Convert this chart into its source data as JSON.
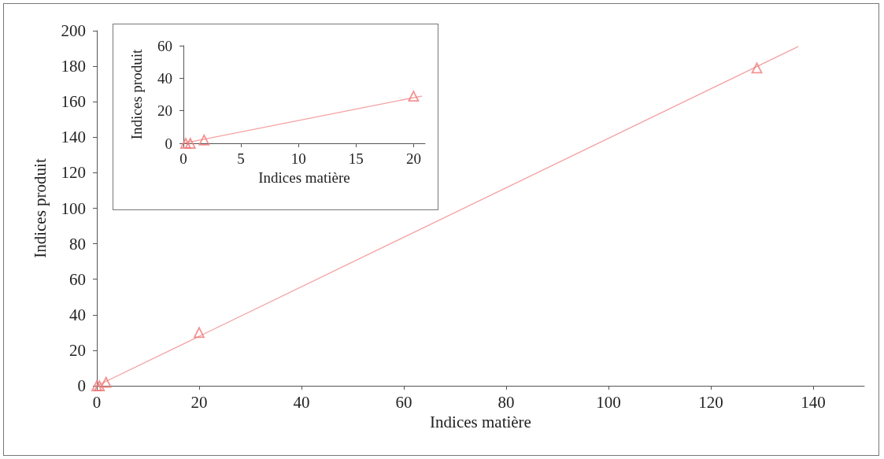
{
  "chart_data": [
    {
      "type": "scatter",
      "xlabel": "Indices matière",
      "ylabel": "Indices produit",
      "xlim": [
        0,
        150
      ],
      "xticks": [
        0,
        20,
        40,
        60,
        80,
        100,
        120,
        140
      ],
      "ylim": [
        0,
        200
      ],
      "yticks": [
        0,
        20,
        40,
        60,
        80,
        100,
        120,
        140,
        160,
        180,
        200
      ],
      "marker": "triangle",
      "series": [
        {
          "color": "#f07878",
          "x": [
            0,
            0.5,
            1.8,
            20,
            129
          ],
          "values": [
            0,
            0,
            2,
            30,
            179
          ]
        },
        {
          "type": "line",
          "color": "#f4a0a0",
          "marker": "none",
          "x": [
            0,
            137
          ],
          "values": [
            0,
            191
          ]
        }
      ]
    },
    {
      "type": "scatter",
      "xlabel": "Indices matière",
      "ylabel": "Indices produit",
      "xlim": [
        0,
        21
      ],
      "xticks": [
        0,
        5,
        10,
        15,
        20
      ],
      "ylim": [
        0,
        60
      ],
      "yticks": [
        0,
        20,
        40,
        60
      ],
      "marker": "triangle",
      "series": [
        {
          "color": "#f07878",
          "x": [
            0.2,
            0.6,
            1.8,
            20
          ],
          "values": [
            0,
            0,
            2,
            29
          ]
        },
        {
          "type": "line",
          "color": "#f4a0a0",
          "marker": "none",
          "x": [
            0,
            20.7
          ],
          "values": [
            0,
            29
          ]
        }
      ]
    }
  ]
}
